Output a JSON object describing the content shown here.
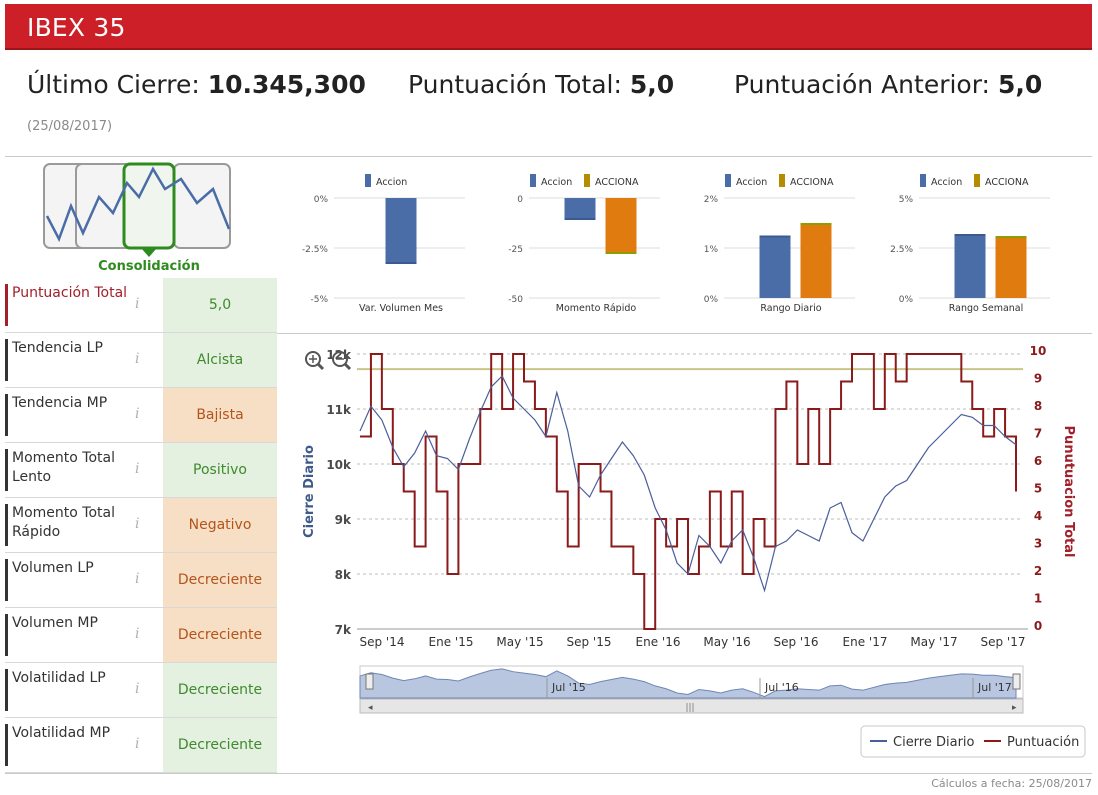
{
  "header": {
    "title": "IBEX 35"
  },
  "summary": {
    "last_close_label": "Último Cierre:",
    "last_close_value": "10.345,300",
    "total_score_label": "Puntuación Total:",
    "total_score_value": "5,0",
    "prev_score_label": "Puntuación Anterior:",
    "prev_score_value": "5,0",
    "date": "(25/08/2017)"
  },
  "logo": {
    "label": "Consolidación"
  },
  "indicators": [
    {
      "label": "Puntuación Total",
      "info": "i",
      "value": "5,0",
      "status": "neutral"
    },
    {
      "label": "Tendencia LP",
      "info": "i",
      "value": "Alcista",
      "status": "green"
    },
    {
      "label": "Tendencia MP",
      "info": "i",
      "value": "Bajista",
      "status": "orange"
    },
    {
      "label": "Momento Total Lento",
      "info": "i",
      "value": "Positivo",
      "status": "green"
    },
    {
      "label": "Momento Total Rápido",
      "info": "i",
      "value": "Negativo",
      "status": "orange"
    },
    {
      "label": "Volumen LP",
      "info": "i",
      "value": "Decreciente",
      "status": "orange"
    },
    {
      "label": "Volumen MP",
      "info": "i",
      "value": "Decreciente",
      "status": "orange"
    },
    {
      "label": "Volatilidad LP",
      "info": "i",
      "value": "Decreciente",
      "status": "green"
    },
    {
      "label": "Volatilidad MP",
      "info": "i",
      "value": "Decreciente",
      "status": "green"
    }
  ],
  "colors": {
    "accion": "#4a6da7",
    "acciona": "#e07b10",
    "acciona_edge": "#8ba000",
    "red": "#cc1f27",
    "close_line": "#4a5e9a",
    "score_line": "#8b1a1a",
    "ref_line": "#c9c48a"
  },
  "chart_data": [
    {
      "type": "bar",
      "categories": [
        "Var. Volumen Mes"
      ],
      "series": [
        {
          "name": "Accion",
          "values": [
            -3.3
          ]
        }
      ],
      "tick_labels": [
        "0%",
        "-2.5%",
        "-5%"
      ],
      "ylim": [
        -5,
        0
      ]
    },
    {
      "type": "bar",
      "categories": [
        "Momento Rápido"
      ],
      "series": [
        {
          "name": "Accion",
          "values": [
            -11
          ]
        },
        {
          "name": "ACCIONA",
          "values": [
            -28
          ]
        }
      ],
      "tick_labels": [
        "0",
        "-25",
        "-50"
      ],
      "ylim": [
        -50,
        0
      ]
    },
    {
      "type": "bar",
      "categories": [
        "Rango Diario"
      ],
      "series": [
        {
          "name": "Accion",
          "values": [
            1.25
          ]
        },
        {
          "name": "ACCIONA",
          "values": [
            1.5
          ]
        }
      ],
      "tick_labels": [
        "2%",
        "1%",
        "0%"
      ],
      "ylim": [
        0,
        2
      ]
    },
    {
      "type": "bar",
      "categories": [
        "Rango Semanal"
      ],
      "series": [
        {
          "name": "Accion",
          "values": [
            3.2
          ]
        },
        {
          "name": "ACCIONA",
          "values": [
            3.1
          ]
        }
      ],
      "tick_labels": [
        "5%",
        "2.5%",
        "0%"
      ],
      "ylim": [
        0,
        5
      ]
    },
    {
      "type": "line",
      "ylabel": "Cierre Diario",
      "y2label": "Punutuacion Total",
      "y_ticks": [
        "12k",
        "11k",
        "10k",
        "9k",
        "8k",
        "7k"
      ],
      "ylim": [
        7000,
        12000
      ],
      "y2_ticks": [
        "10",
        "9",
        "8",
        "7",
        "6",
        "5",
        "4",
        "3",
        "2",
        "1",
        "0"
      ],
      "y2lim": [
        0,
        10
      ],
      "x_ticks": [
        "Sep '14",
        "Ene '15",
        "May '15",
        "Sep '15",
        "Ene '16",
        "May '16",
        "Sep '16",
        "Ene '17",
        "May '17",
        "Sep '17"
      ],
      "navigator_ticks": [
        "Jul '15",
        "Jul '16",
        "Jul '17"
      ],
      "reference_line": 9.45,
      "series": [
        {
          "name": "Cierre Diario",
          "values": [
            10600,
            11050,
            10800,
            10300,
            9950,
            10200,
            10600,
            10150,
            10100,
            9900,
            10450,
            10950,
            11400,
            11600,
            11200,
            11000,
            10800,
            10500,
            11300,
            10600,
            9600,
            9400,
            9800,
            10100,
            10400,
            10150,
            9800,
            9200,
            8800,
            8200,
            8000,
            8700,
            8500,
            8200,
            8600,
            8800,
            8300,
            7700,
            8500,
            8600,
            8800,
            8700,
            8600,
            9200,
            9300,
            8750,
            8600,
            9000,
            9400,
            9600,
            9700,
            10000,
            10300,
            10500,
            10700,
            10900,
            10850,
            10700,
            10700,
            10500,
            10350
          ]
        },
        {
          "name": "Puntuación",
          "values": [
            7,
            10,
            8,
            6,
            5,
            3,
            7,
            5,
            2,
            6,
            6,
            8,
            10,
            8,
            10,
            9,
            8,
            7,
            5,
            3,
            6,
            6,
            5,
            3,
            3,
            2,
            0,
            4,
            3,
            4,
            2,
            3,
            5,
            3,
            5,
            2,
            4,
            3,
            8,
            9,
            6,
            8,
            6,
            8,
            9,
            10,
            10,
            8,
            10,
            9,
            10,
            10,
            10,
            10,
            10,
            9,
            8,
            7,
            8,
            7,
            5
          ]
        }
      ],
      "legend": [
        "Cierre Diario",
        "Puntuación"
      ]
    }
  ],
  "footer": {
    "text": "Cálculos a fecha: 25/08/2017"
  }
}
